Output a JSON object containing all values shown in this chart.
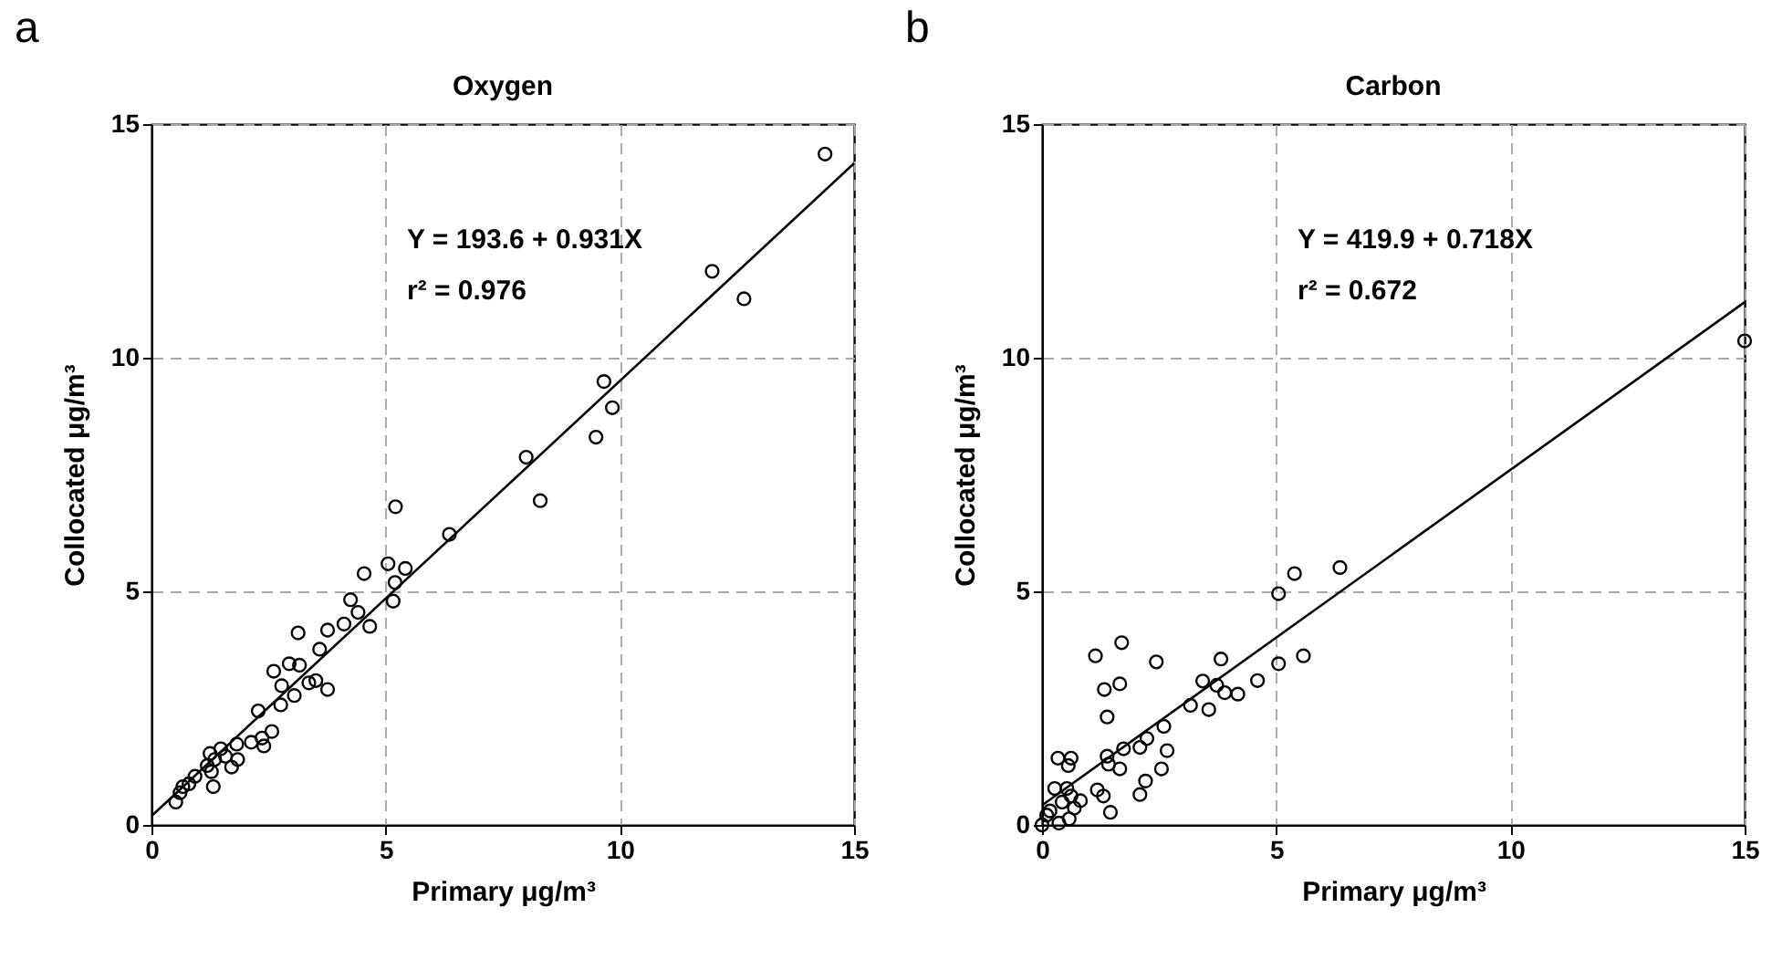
{
  "chart_data": [
    {
      "type": "scatter",
      "title": "Oxygen",
      "xlabel": "Primary μg/m³",
      "ylabel": "Collocated μg/m³",
      "annotations": [
        "a",
        "Y = 193.6 + 0.931X",
        "r² = 0.976"
      ],
      "xlim": [
        0,
        15
      ],
      "ylim": [
        0,
        15
      ],
      "xticks": [
        0,
        5,
        10,
        15
      ],
      "yticks": [
        0,
        5,
        10,
        15
      ],
      "grid": true,
      "series": [
        {
          "marker": "circle",
          "color": "#000000",
          "x": [
            14.38,
            11.97,
            12.65,
            9.66,
            9.84,
            9.49,
            8.0,
            8.3,
            5.21,
            6.36,
            5.05,
            5.42,
            5.2,
            5.16,
            4.54,
            4.25,
            4.41,
            4.66,
            4.11,
            3.76,
            3.13,
            3.59,
            2.94,
            3.16,
            2.61,
            2.78,
            3.36,
            3.51,
            3.76,
            3.05,
            2.76,
            2.28,
            2.57,
            2.36,
            2.13,
            2.4,
            1.82,
            1.84,
            1.71,
            1.58,
            1.48,
            1.25,
            1.35,
            1.19,
            1.28,
            1.32,
            0.93,
            0.8,
            0.67,
            0.61,
            0.52
          ],
          "values": [
            14.36,
            11.85,
            11.26,
            9.49,
            8.93,
            8.3,
            7.87,
            6.94,
            6.81,
            6.22,
            5.59,
            5.49,
            5.19,
            4.79,
            5.38,
            4.82,
            4.55,
            4.25,
            4.3,
            4.17,
            4.11,
            3.76,
            3.45,
            3.42,
            3.29,
            2.98,
            3.04,
            3.09,
            2.9,
            2.77,
            2.57,
            2.44,
            2.0,
            1.86,
            1.77,
            1.69,
            1.73,
            1.4,
            1.24,
            1.47,
            1.63,
            1.53,
            1.4,
            1.27,
            1.14,
            0.82,
            1.04,
            0.88,
            0.82,
            0.69,
            0.49
          ]
        },
        {
          "type": "line",
          "color": "#000000",
          "x": [
            0,
            15
          ],
          "values": [
            0.19,
            14.16
          ]
        }
      ]
    },
    {
      "type": "scatter",
      "title": "Carbon",
      "xlabel": "Primary μg/m³",
      "ylabel": "Collocated μg/m³",
      "annotations": [
        "b",
        "Y = 419.9 + 0.718X",
        "r² = 0.672"
      ],
      "xlim": [
        0,
        15
      ],
      "ylim": [
        0,
        15
      ],
      "xticks": [
        0,
        5,
        10,
        15
      ],
      "yticks": [
        0,
        5,
        10,
        15
      ],
      "grid": true,
      "series": [
        {
          "marker": "circle",
          "color": "#000000",
          "x": [
            15.0,
            6.36,
            5.39,
            5.05,
            5.58,
            5.05,
            4.6,
            4.18,
            3.9,
            3.73,
            3.82,
            3.43,
            3.56,
            3.17,
            1.7,
            1.14,
            2.44,
            1.66,
            1.33,
            1.39,
            2.6,
            2.24,
            2.09,
            1.74,
            2.67,
            1.39,
            1.42,
            1.66,
            2.55,
            2.21,
            2.09,
            1.18,
            1.31,
            1.46,
            0.34,
            0.62,
            0.56,
            0.27,
            0.53,
            0.62,
            0.82,
            0.69,
            0.43,
            0.17,
            0.1,
            0.58,
            0.36,
            0.0
          ],
          "values": [
            10.36,
            5.51,
            5.38,
            4.95,
            3.62,
            3.45,
            3.09,
            2.8,
            2.83,
            2.99,
            3.55,
            3.08,
            2.47,
            2.56,
            3.9,
            3.62,
            3.49,
            3.02,
            2.9,
            2.31,
            2.11,
            1.85,
            1.66,
            1.63,
            1.59,
            1.47,
            1.3,
            1.2,
            1.2,
            0.94,
            0.65,
            0.75,
            0.62,
            0.27,
            1.43,
            1.43,
            1.27,
            0.78,
            0.78,
            0.62,
            0.52,
            0.36,
            0.49,
            0.3,
            0.21,
            0.13,
            0.04,
            0.0
          ]
        },
        {
          "type": "line",
          "color": "#000000",
          "x": [
            0,
            15
          ],
          "values": [
            0.42,
            11.19
          ]
        }
      ]
    }
  ]
}
